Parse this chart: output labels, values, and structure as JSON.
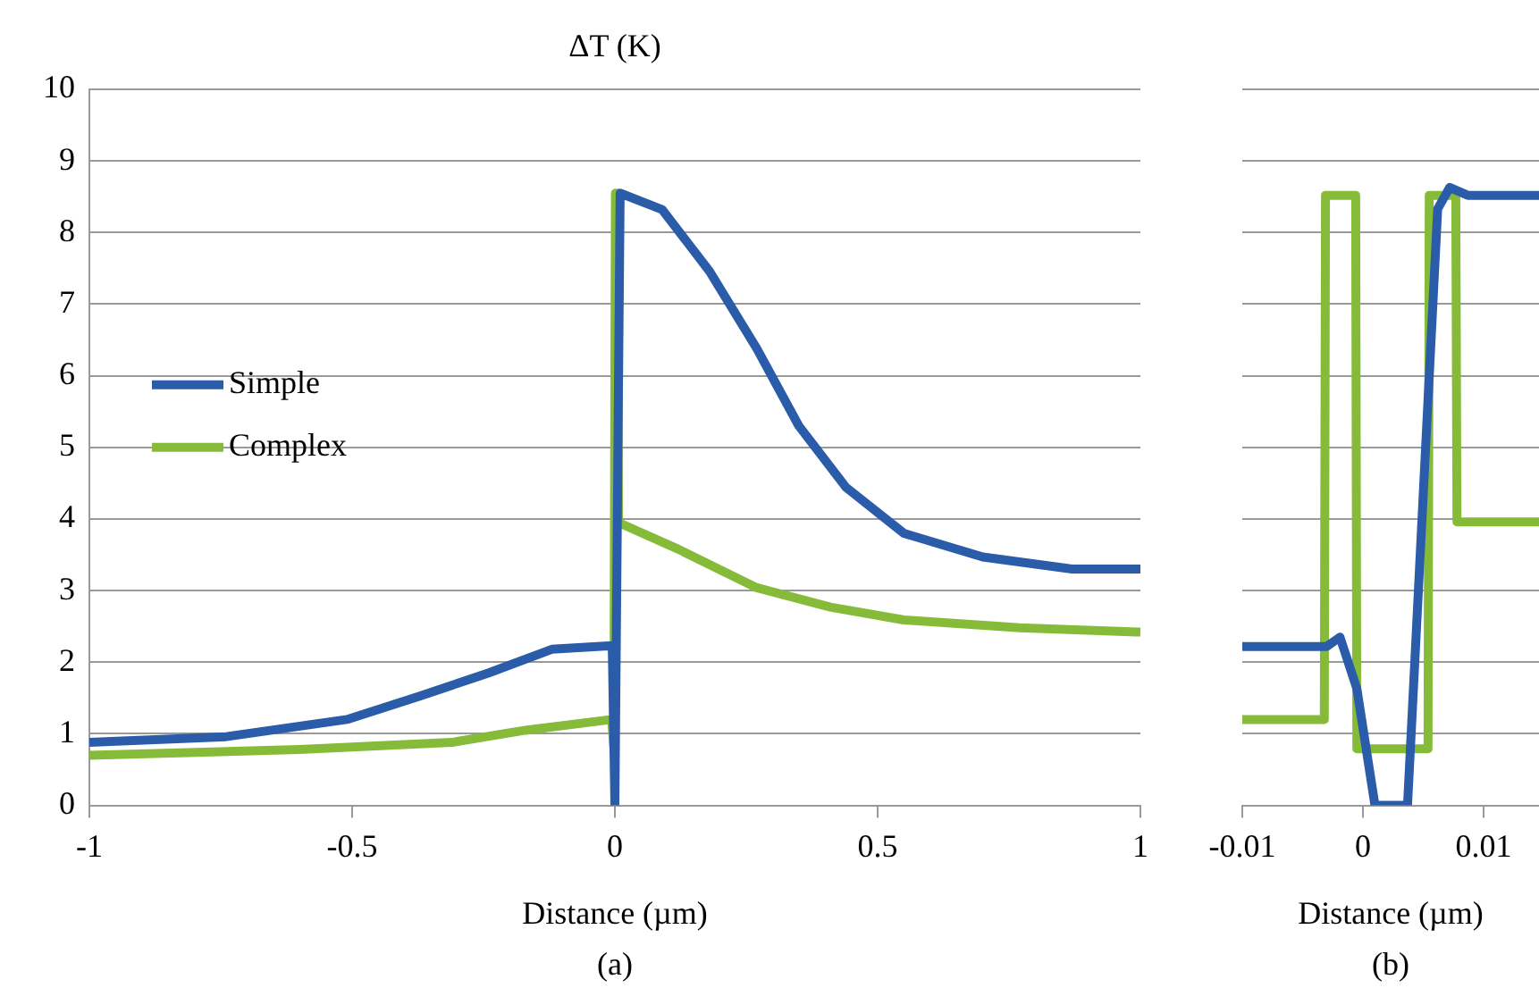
{
  "chart_data": [
    {
      "type": "line",
      "ylabel": "ΔT (K)",
      "xlabel": "Distance (µm)",
      "annotations": [
        "(a)"
      ],
      "xlim": [
        -1,
        1
      ],
      "xticks": [
        -1,
        -0.5,
        0,
        0.5,
        1
      ],
      "ylim": [
        0,
        10
      ],
      "yticks": [
        0,
        1,
        2,
        3,
        4,
        5,
        6,
        7,
        8,
        9,
        10
      ],
      "grid": "y",
      "legend": "left",
      "line_style": "solid",
      "series": [
        {
          "name": "Simple",
          "color": "#2a5caa",
          "x": [
            -1,
            -0.74,
            -0.51,
            -0.37,
            -0.24,
            -0.12,
            -0.005,
            0,
            0.01,
            0.09,
            0.18,
            0.27,
            0.35,
            0.44,
            0.55,
            0.7,
            0.87,
            1
          ],
          "values": [
            0.88,
            0.96,
            1.2,
            1.53,
            1.85,
            2.18,
            2.23,
            0,
            8.55,
            8.32,
            7.46,
            6.38,
            5.3,
            4.44,
            3.8,
            3.47,
            3.3,
            3.3
          ]
        },
        {
          "name": "Complex",
          "color": "#86bb3a",
          "x": [
            -1,
            -0.6,
            -0.31,
            -0.17,
            -0.006,
            -0.002,
            0.001,
            0.004,
            0.007,
            0.12,
            0.27,
            0.41,
            0.55,
            0.77,
            1
          ],
          "values": [
            0.7,
            0.78,
            0.88,
            1.05,
            1.2,
            0.8,
            8.55,
            8.55,
            3.95,
            3.58,
            3.04,
            2.77,
            2.59,
            2.48,
            2.42
          ]
        }
      ]
    },
    {
      "type": "line",
      "xlabel": "Distance (µm)",
      "annotations": [
        "(b)"
      ],
      "xlim": [
        -0.01,
        0.0146
      ],
      "xticks": [
        -0.01,
        0,
        0.01
      ],
      "ylim": [
        0,
        10
      ],
      "yticks": [
        0,
        1,
        2,
        3,
        4,
        5,
        6,
        7,
        8,
        9,
        10
      ],
      "tick_labels": "x",
      "grid": "y",
      "line_style": "solid",
      "series": [
        {
          "color": "#2a5caa",
          "x": [
            -0.01,
            -0.003,
            -0.0019,
            -0.0005,
            0.001,
            0.0037,
            0.0062,
            0.0072,
            0.0087,
            0.0146
          ],
          "values": [
            2.22,
            2.22,
            2.35,
            1.63,
            0,
            0,
            8.33,
            8.63,
            8.52,
            8.52
          ]
        },
        {
          "color": "#86bb3a",
          "x": [
            -0.01,
            -0.0032,
            -0.0031,
            -0.0006,
            -0.0005,
            0.0054,
            0.0055,
            0.0077,
            0.0078,
            0.0146
          ],
          "values": [
            1.2,
            1.2,
            8.52,
            8.52,
            0.79,
            0.79,
            8.52,
            8.52,
            3.96,
            3.96
          ]
        }
      ]
    }
  ]
}
